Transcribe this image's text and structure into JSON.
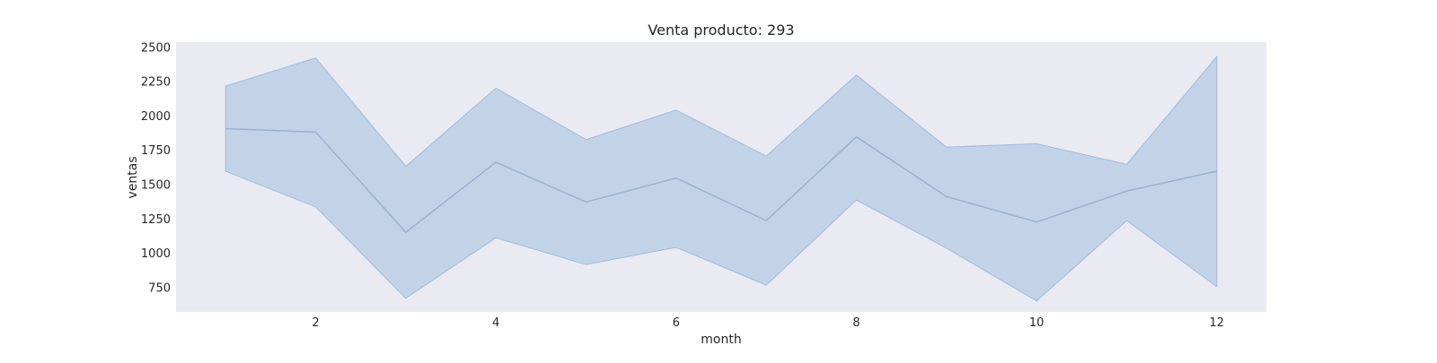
{
  "chart_data": {
    "type": "line",
    "title": "Venta producto: 293",
    "xlabel": "month",
    "ylabel": "ventas",
    "x": [
      1,
      2,
      3,
      4,
      5,
      6,
      7,
      8,
      9,
      10,
      11,
      12
    ],
    "series": [
      {
        "values": [
          1905,
          1880,
          1150,
          1660,
          1370,
          1545,
          1235,
          1845,
          1410,
          1225,
          1450,
          1595
        ],
        "band_upper": [
          2215,
          2420,
          1630,
          2200,
          1825,
          2040,
          1705,
          2295,
          1770,
          1795,
          1645,
          2430
        ],
        "band_lower": [
          1595,
          1335,
          670,
          1110,
          915,
          1040,
          765,
          1385,
          1035,
          650,
          1235,
          755
        ]
      }
    ],
    "xticks": [
      2,
      4,
      6,
      8,
      10,
      12
    ],
    "yticks": [
      750,
      1000,
      1250,
      1500,
      1750,
      2000,
      2250,
      2500
    ],
    "xlim": [
      0.45,
      12.55
    ],
    "ylim": [
      570,
      2535
    ],
    "grid": false,
    "colors": {
      "plot_background": "#eaeaf2",
      "line": "#4c72b0",
      "band_fill": "#a7c3e0",
      "band_edge": "#9dbddb"
    }
  }
}
